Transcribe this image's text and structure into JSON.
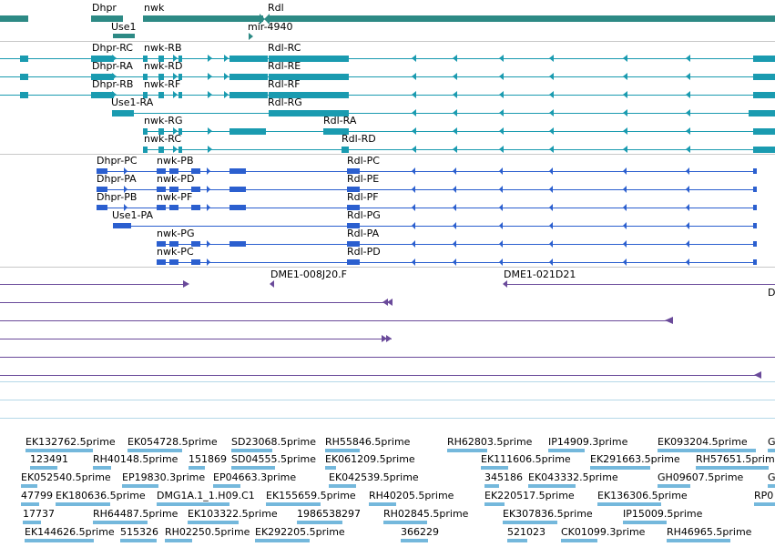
{
  "colors": {
    "gene": "#2d8a85",
    "transcript": "#1a9bb0",
    "protein": "#2b5fcf",
    "clone": "#6a4a9a",
    "est": "#74b8dc",
    "separator": "#c8c8c8"
  },
  "genes": [
    {
      "label": "Dhpr"
    },
    {
      "label": "nwk"
    },
    {
      "label": "Rdl"
    },
    {
      "label": "Use1"
    },
    {
      "label": "mir-4940"
    }
  ],
  "transcripts": [
    {
      "label": "Dhpr-RC"
    },
    {
      "label": "nwk-RB"
    },
    {
      "label": "Rdl-RC"
    },
    {
      "label": "Dhpr-RA"
    },
    {
      "label": "nwk-RD"
    },
    {
      "label": "Rdl-RE"
    },
    {
      "label": "Dhpr-RB"
    },
    {
      "label": "nwk-RF"
    },
    {
      "label": "Rdl-RF"
    },
    {
      "label": "Use1-RA"
    },
    {
      "label": "Rdl-RG"
    },
    {
      "label": "nwk-RG"
    },
    {
      "label": "Rdl-RA"
    },
    {
      "label": "nwk-RC"
    },
    {
      "label": "Rdl-RD"
    }
  ],
  "proteins": [
    {
      "label": "Dhpr-PC"
    },
    {
      "label": "nwk-PB"
    },
    {
      "label": "Rdl-PC"
    },
    {
      "label": "Dhpr-PA"
    },
    {
      "label": "nwk-PD"
    },
    {
      "label": "Rdl-PE"
    },
    {
      "label": "Dhpr-PB"
    },
    {
      "label": "nwk-PF"
    },
    {
      "label": "Rdl-PF"
    },
    {
      "label": "Use1-PA"
    },
    {
      "label": "Rdl-PG"
    },
    {
      "label": "nwk-PG"
    },
    {
      "label": "Rdl-PA"
    },
    {
      "label": "nwk-PC"
    },
    {
      "label": "Rdl-PD"
    }
  ],
  "clones": [
    {
      "label": "DME1-008J20.F"
    },
    {
      "label": "DME1-021D21"
    },
    {
      "label": "D"
    }
  ],
  "ests": [
    {
      "label": "EK132762.5prime"
    },
    {
      "label": "EK054728.5prime"
    },
    {
      "label": "SD23068.5prime"
    },
    {
      "label": "RH55846.5prime"
    },
    {
      "label": "RH62803.5prime"
    },
    {
      "label": "IP14909.3prime"
    },
    {
      "label": "EK093204.5prime"
    },
    {
      "label": "G"
    },
    {
      "label": "123491"
    },
    {
      "label": "RH40148.5prime"
    },
    {
      "label": "151869"
    },
    {
      "label": "SD04555.5prime"
    },
    {
      "label": "EK061209.5prime"
    },
    {
      "label": "EK111606.5prime"
    },
    {
      "label": "EK291663.5prime"
    },
    {
      "label": "RH57651.5prime"
    },
    {
      "label": "EK052540.5prime"
    },
    {
      "label": "EP19830.3prime"
    },
    {
      "label": "EP04663.3prime"
    },
    {
      "label": "EK042539.5prime"
    },
    {
      "label": "345186"
    },
    {
      "label": "EK043332.5prime"
    },
    {
      "label": "GH09607.5prime"
    },
    {
      "label": "G"
    },
    {
      "label": "47799"
    },
    {
      "label": "EK180636.5prime"
    },
    {
      "label": "DMG1A.1_1.H09.C1"
    },
    {
      "label": "EK155659.5prime"
    },
    {
      "label": "RH40205.5prime"
    },
    {
      "label": "EK220517.5prime"
    },
    {
      "label": "EK136306.5prime"
    },
    {
      "label": "RP0"
    },
    {
      "label": "17737"
    },
    {
      "label": "RH64487.5prime"
    },
    {
      "label": "EK103322.5prime"
    },
    {
      "label": "1986538297"
    },
    {
      "label": "RH02845.5prime"
    },
    {
      "label": "EK307836.5prime"
    },
    {
      "label": "IP15009.5prime"
    },
    {
      "label": "EK144626.5prime"
    },
    {
      "label": "515326"
    },
    {
      "label": "RH02250.5prime"
    },
    {
      "label": "EK292205.5prime"
    },
    {
      "label": "366229"
    },
    {
      "label": "521023"
    },
    {
      "label": "CK01099.3prime"
    },
    {
      "label": "RH46965.5prime"
    }
  ]
}
